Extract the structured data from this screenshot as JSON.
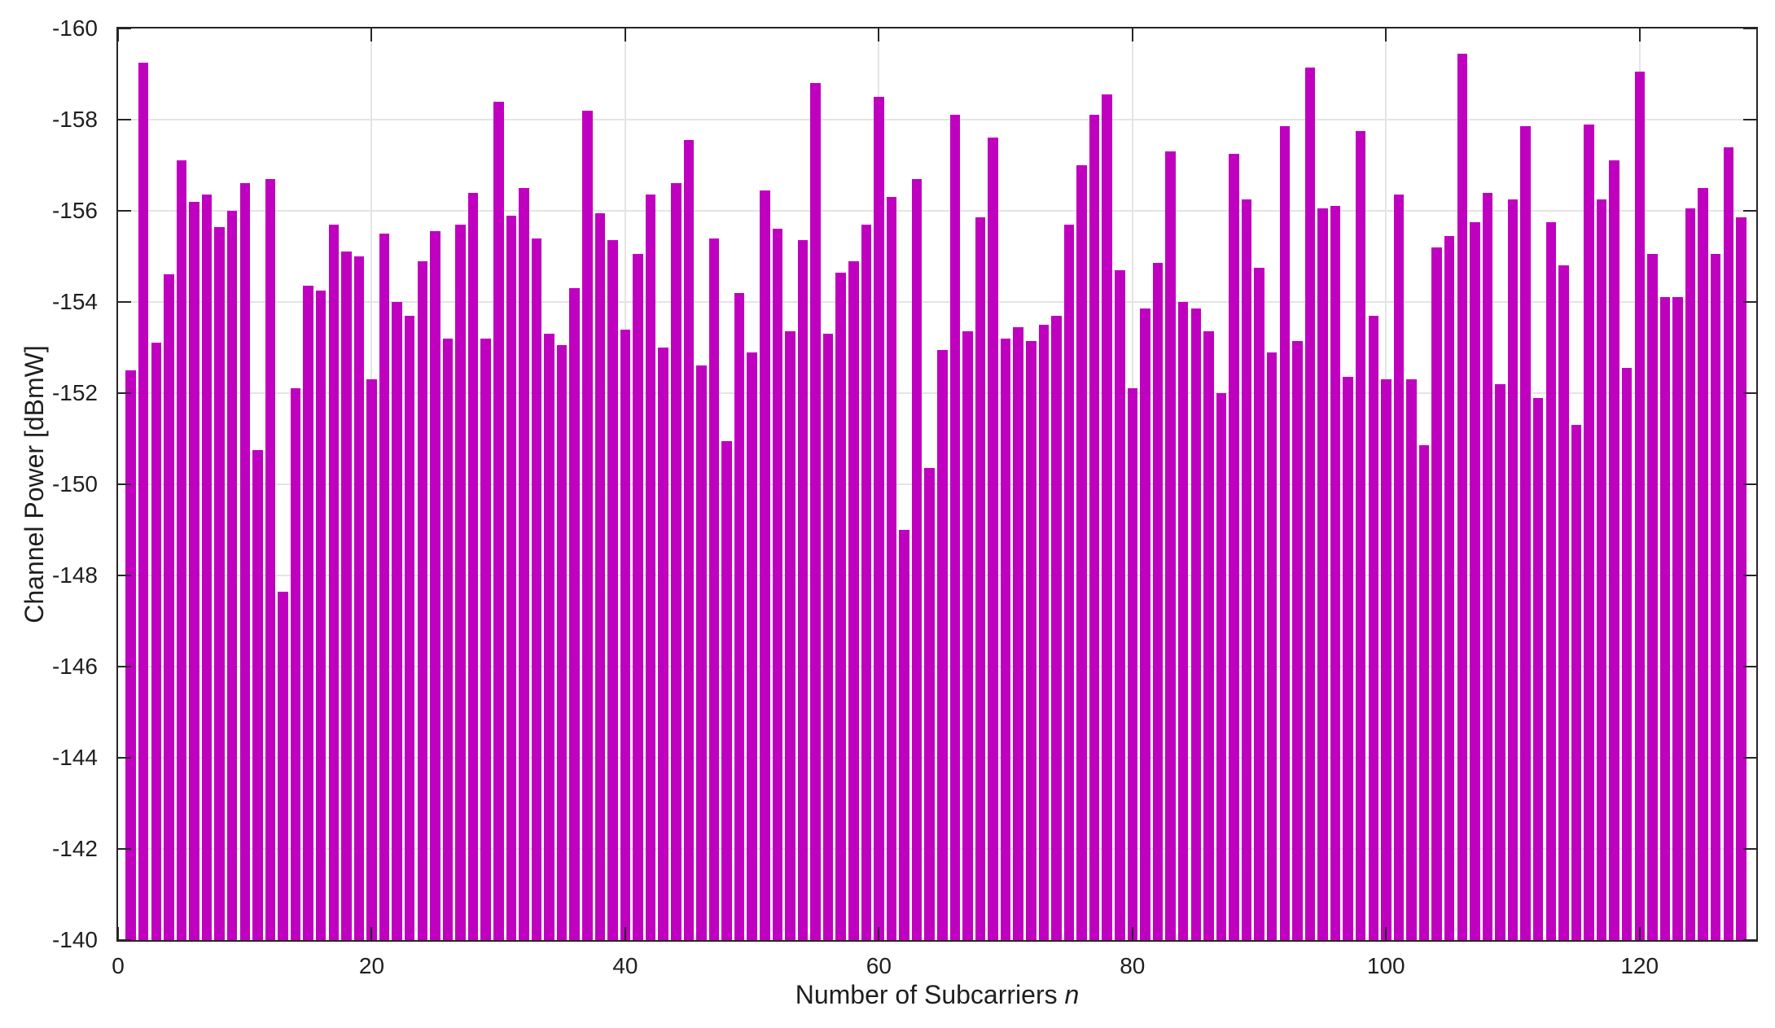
{
  "figure": {
    "background": "#ffffff",
    "axis_color": "#262626",
    "text_color": "#1f1f1f"
  },
  "chart_data": {
    "type": "bar",
    "title": "",
    "xlabel": "Number of Subcarriers",
    "xlabel_var": "n",
    "ylabel": "Channel Power [dBmW]",
    "bar_color": "#BF00BF",
    "grid": true,
    "grid_color": "#e4e4e4",
    "legend": null,
    "y_axis_reversed": true,
    "ylim_top": -160,
    "ylim_bottom": -140,
    "xlim": [
      0,
      129.2
    ],
    "xticks": [
      0,
      20,
      40,
      60,
      80,
      100,
      120
    ],
    "yticks": [
      -160,
      -158,
      -156,
      -154,
      -152,
      -150,
      -148,
      -146,
      -144,
      -142,
      -140
    ],
    "bar_width_fraction": 0.8,
    "x": [
      1,
      2,
      3,
      4,
      5,
      6,
      7,
      8,
      9,
      10,
      11,
      12,
      13,
      14,
      15,
      16,
      17,
      18,
      19,
      20,
      21,
      22,
      23,
      24,
      25,
      26,
      27,
      28,
      29,
      30,
      31,
      32,
      33,
      34,
      35,
      36,
      37,
      38,
      39,
      40,
      41,
      42,
      43,
      44,
      45,
      46,
      47,
      48,
      49,
      50,
      51,
      52,
      53,
      54,
      55,
      56,
      57,
      58,
      59,
      60,
      61,
      62,
      63,
      64,
      65,
      66,
      67,
      68,
      69,
      70,
      71,
      72,
      73,
      74,
      75,
      76,
      77,
      78,
      79,
      80,
      81,
      82,
      83,
      84,
      85,
      86,
      87,
      88,
      89,
      90,
      91,
      92,
      93,
      94,
      95,
      96,
      97,
      98,
      99,
      100,
      101,
      102,
      103,
      104,
      105,
      106,
      107,
      108,
      109,
      110,
      111,
      112,
      113,
      114,
      115,
      116,
      117,
      118,
      119,
      120,
      121,
      122,
      123,
      124,
      125,
      126,
      127,
      128
    ],
    "values": [
      -152.5,
      -159.25,
      -153.1,
      -154.6,
      -157.1,
      -156.2,
      -156.35,
      -155.65,
      -156.0,
      -156.6,
      -150.75,
      -156.7,
      -147.65,
      -152.1,
      -154.35,
      -154.25,
      -155.7,
      -155.1,
      -155.0,
      -152.3,
      -155.5,
      -154.0,
      -153.7,
      -154.9,
      -155.55,
      -153.2,
      -155.7,
      -156.4,
      -153.2,
      -158.4,
      -155.9,
      -156.5,
      -155.4,
      -153.3,
      -153.05,
      -154.3,
      -158.2,
      -155.95,
      -155.35,
      -153.4,
      -155.05,
      -156.35,
      -153.0,
      -156.6,
      -157.55,
      -152.6,
      -155.4,
      -150.95,
      -154.2,
      -152.9,
      -156.45,
      -155.6,
      -153.35,
      -155.35,
      -158.8,
      -153.3,
      -154.65,
      -154.9,
      -155.7,
      -158.5,
      -156.3,
      -149.0,
      -156.7,
      -150.35,
      -152.95,
      -158.1,
      -153.35,
      -155.85,
      -157.6,
      -153.2,
      -153.45,
      -153.15,
      -153.5,
      -153.7,
      -155.7,
      -157.0,
      -158.1,
      -158.55,
      -154.7,
      -152.1,
      -153.85,
      -154.85,
      -157.3,
      -154.0,
      -153.85,
      -153.35,
      -152.0,
      -157.25,
      -156.25,
      -154.75,
      -152.9,
      -157.85,
      -153.15,
      -159.15,
      -156.05,
      -156.1,
      -152.35,
      -157.75,
      -153.7,
      -152.3,
      -156.35,
      -152.3,
      -150.85,
      -155.2,
      -155.45,
      -159.45,
      -155.75,
      -156.4,
      -152.2,
      -156.25,
      -157.85,
      -151.9,
      -155.75,
      -154.8,
      -151.3,
      -157.9,
      -156.25,
      -157.1,
      -152.55,
      -159.05,
      -155.05,
      -154.1,
      -154.1,
      -156.05,
      -156.5,
      -155.05,
      -157.4,
      -155.85
    ]
  }
}
